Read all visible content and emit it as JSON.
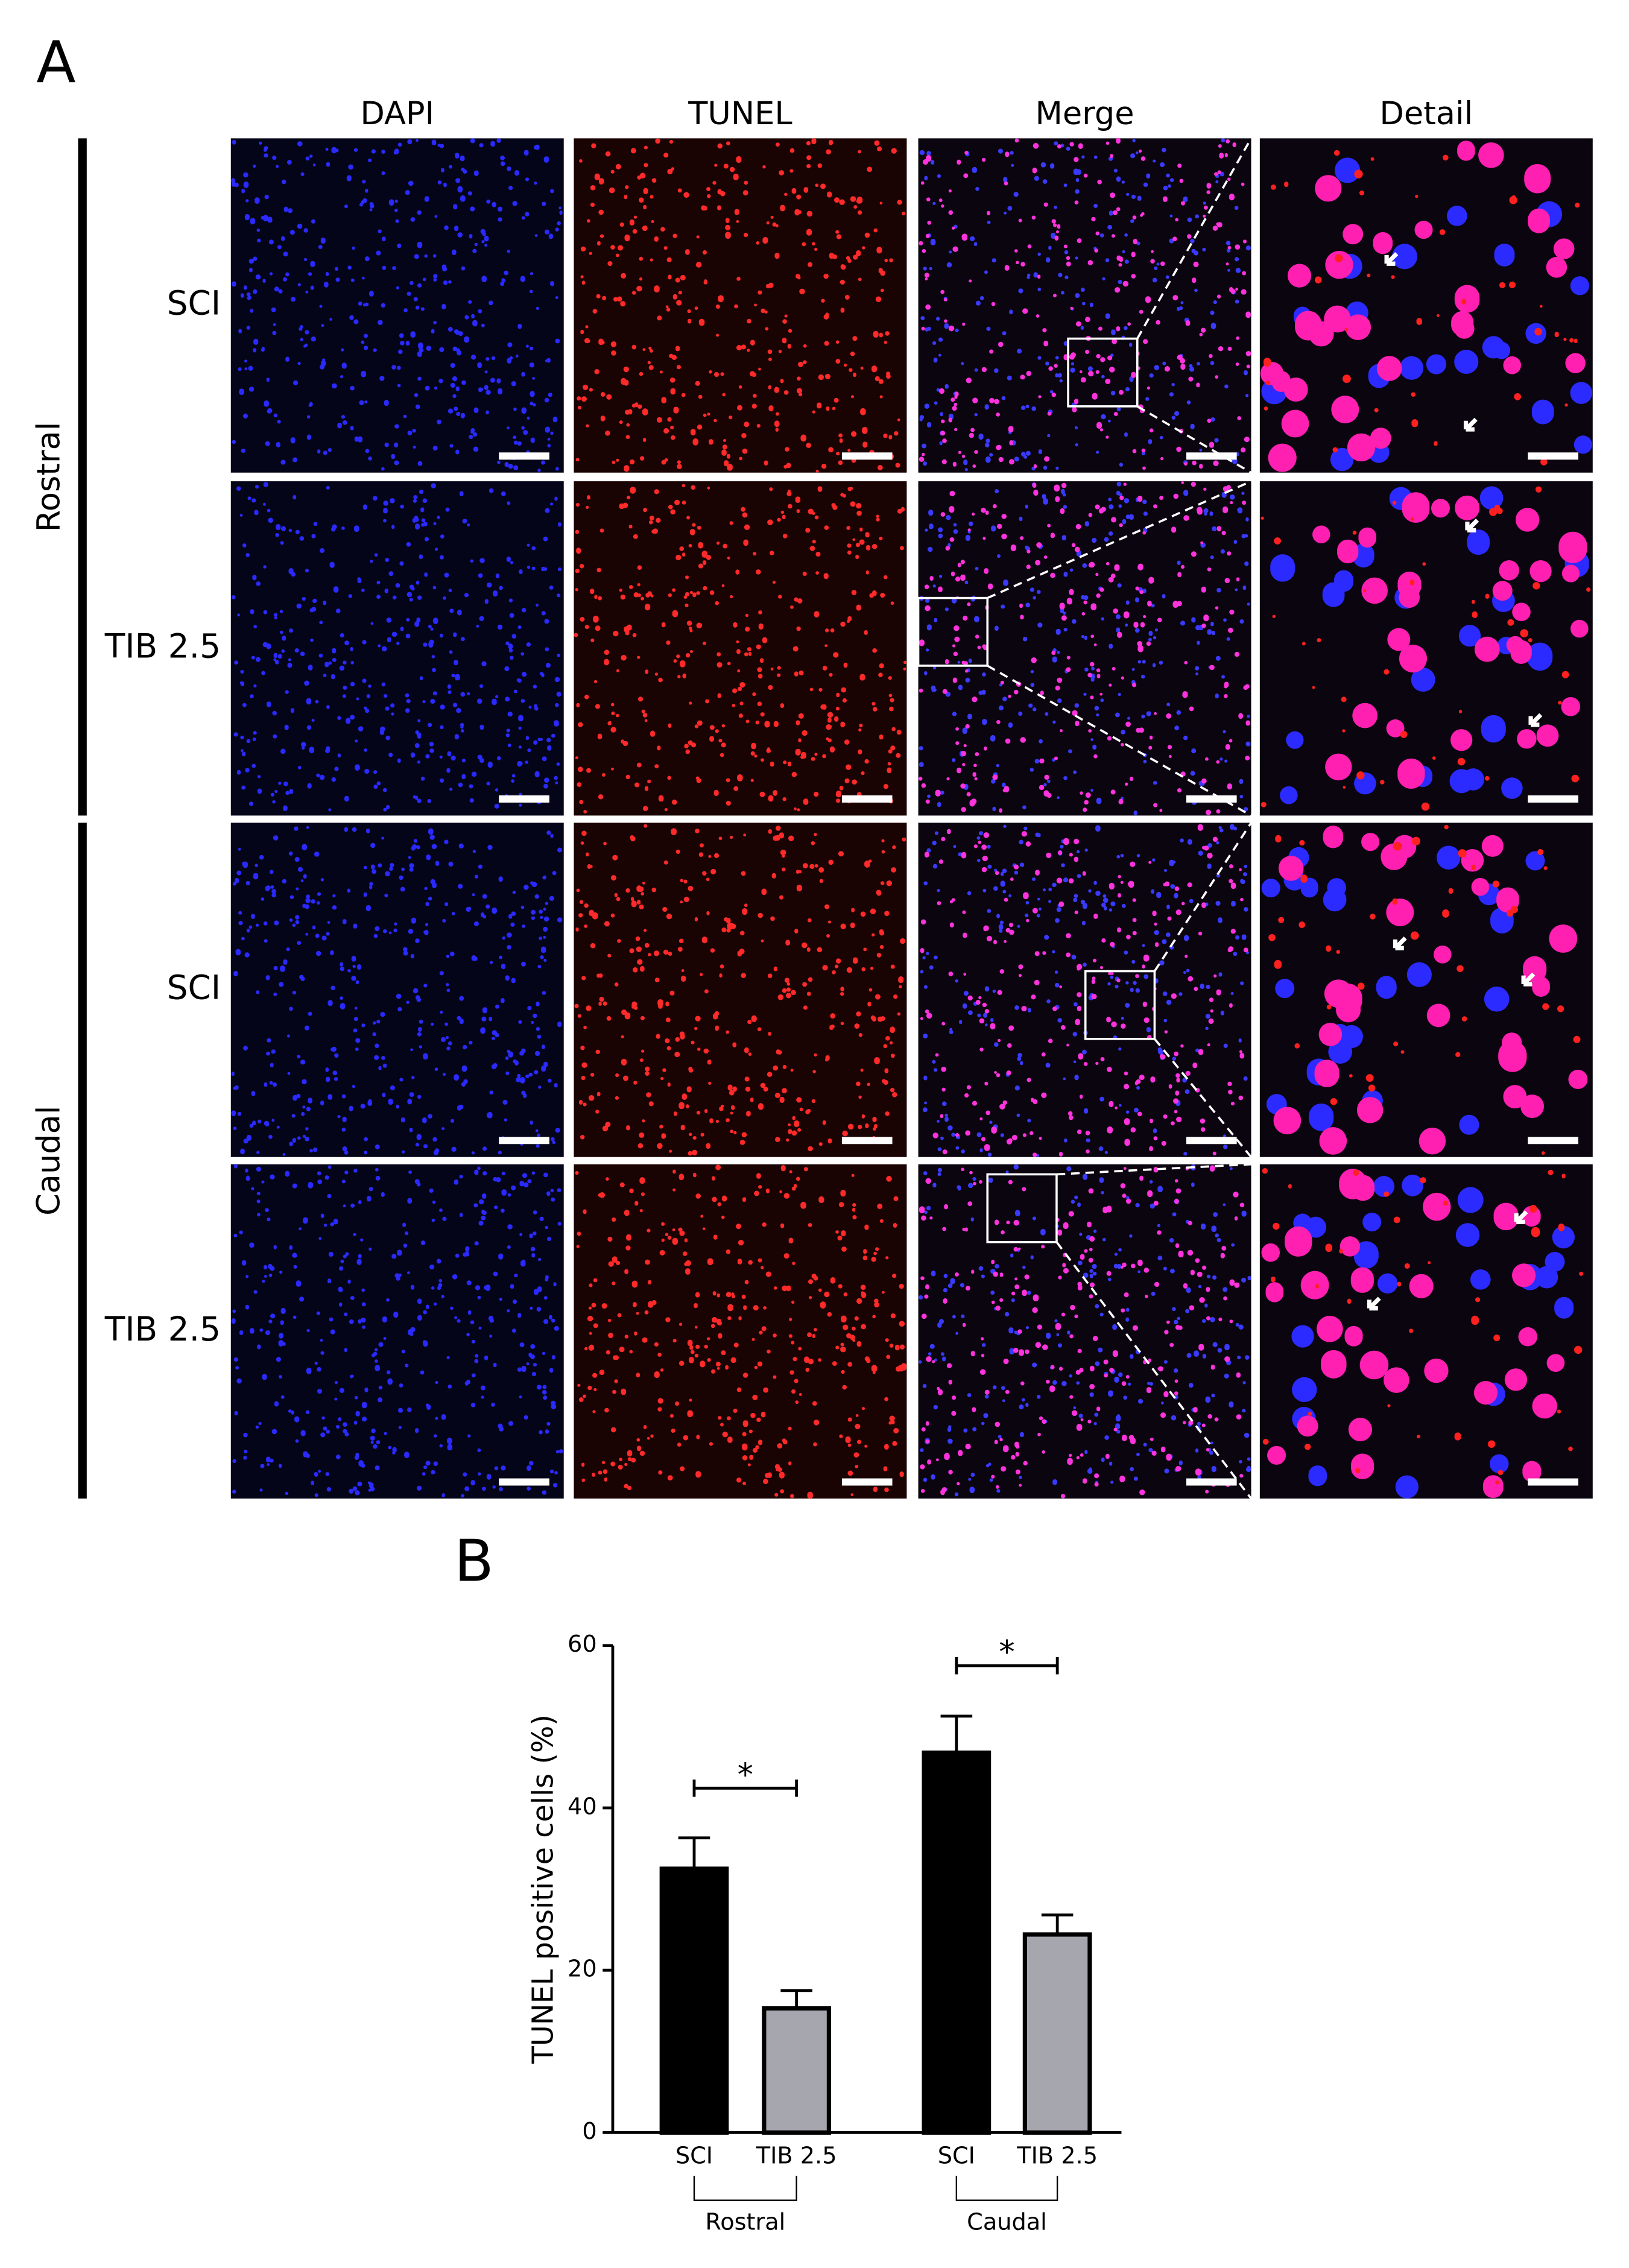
{
  "panel_a": {
    "label": "A",
    "columns": [
      "DAPI",
      "TUNEL",
      "Merge",
      "Detail"
    ],
    "groups": [
      "Rostral",
      "Caudal"
    ],
    "rows": [
      "SCI",
      "TIB 2.5",
      "SCI",
      "TIB 2.5"
    ]
  },
  "chart_data": {
    "label": "B",
    "type": "bar",
    "ylabel": "TUNEL positive cells (%)",
    "categories": [
      "SCI",
      "TIB 2.5",
      "SCI",
      "TIB 2.5"
    ],
    "groups": [
      "Rostral",
      "Caudal"
    ],
    "values": [
      32.5,
      15.3,
      46.8,
      24.4
    ],
    "errors": [
      3.8,
      2.2,
      4.5,
      2.4
    ],
    "colors": [
      "#000000",
      "#a6a6ae",
      "#000000",
      "#a6a6ae"
    ],
    "ylim": [
      0,
      60
    ],
    "yticks": [
      0,
      20,
      40,
      60
    ],
    "significance": [
      "*",
      "*"
    ]
  }
}
